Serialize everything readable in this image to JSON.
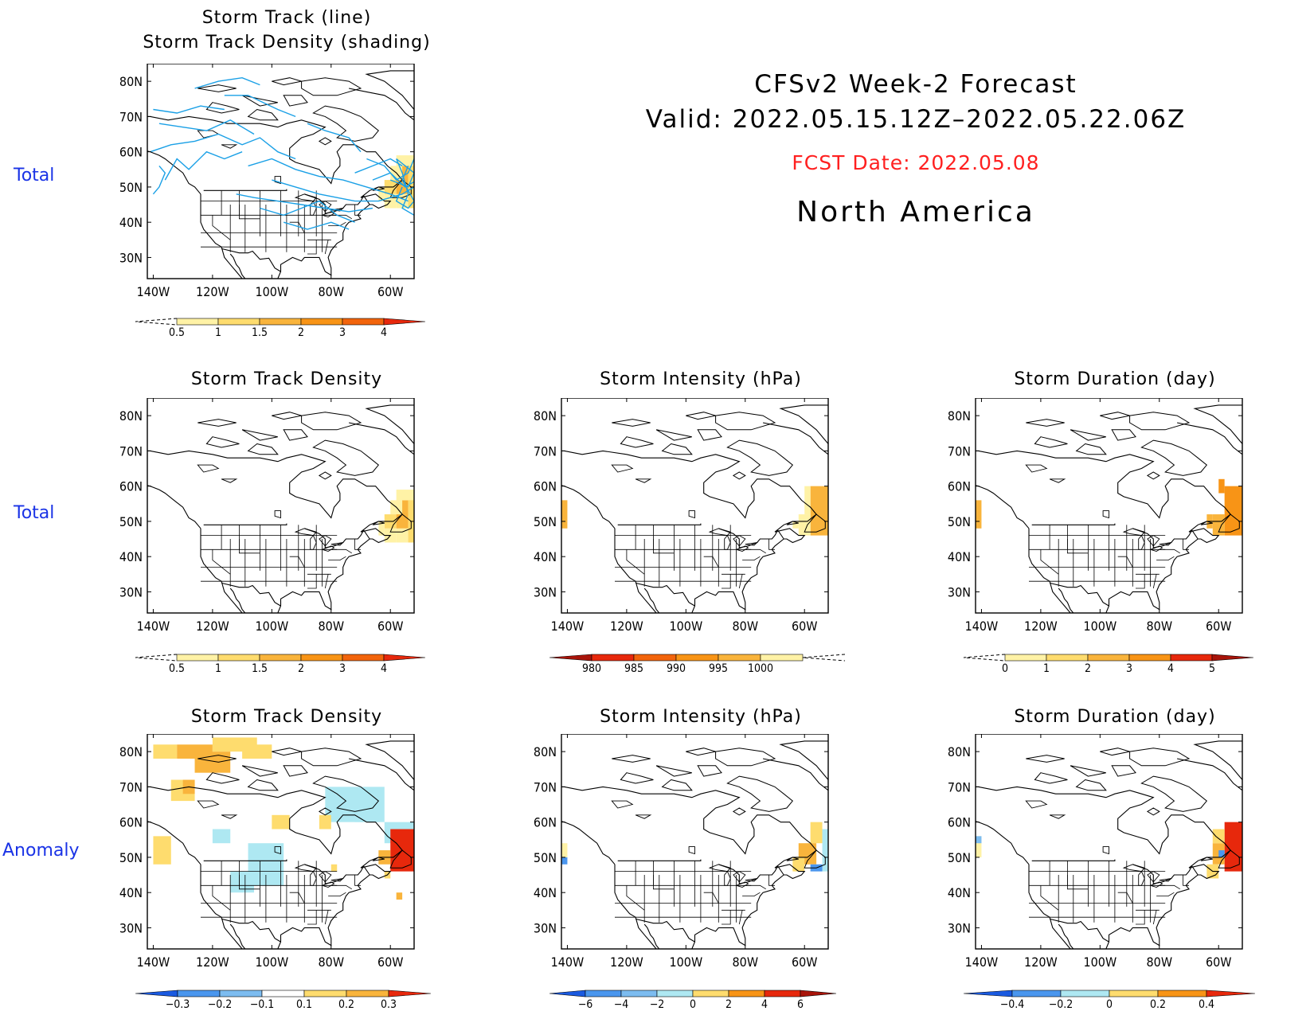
{
  "header": {
    "line1": "CFSv2  Week-2  Forecast",
    "line2": "Valid:  2022.05.15.12Z–2022.05.22.06Z",
    "fcst": "FCST Date: 2022.05.08",
    "region": "North  America"
  },
  "rows": {
    "row1": "Total",
    "row2": "Total",
    "row3": "Anomaly"
  },
  "axes": {
    "lat": [
      "80N",
      "70N",
      "60N",
      "50N",
      "40N",
      "30N"
    ],
    "lon": [
      "140W",
      "120W",
      "100W",
      "80W",
      "60W"
    ]
  },
  "colors": {
    "track_line": "#1aa0e6",
    "pale_yellow": "#fff2a6",
    "yellow": "#fedc6e",
    "light_orange": "#f9b43c",
    "orange": "#f89416",
    "dark_orange": "#f2640c",
    "red": "#e7280c",
    "dark_red": "#a8140a",
    "pale_blue": "#aee8f2",
    "light_blue": "#7cbcf0",
    "mid_blue": "#4a96ee",
    "blue": "#1a5ae0"
  },
  "panels": [
    {
      "id": "p1",
      "title1": "Storm  Track  (line)",
      "title2": "Storm  Track  Density  (shading)",
      "colorbar": {
        "labels": [
          "0.5",
          "1",
          "1.5",
          "2",
          "3",
          "4"
        ]
      }
    },
    {
      "id": "p2",
      "title1": "Storm  Track  Density",
      "colorbar": {
        "labels": [
          "0.5",
          "1",
          "1.5",
          "2",
          "3",
          "4"
        ]
      }
    },
    {
      "id": "p3",
      "title1": "Storm  Intensity  (hPa)",
      "colorbar": {
        "labels": [
          "980",
          "985",
          "990",
          "995",
          "1000"
        ]
      }
    },
    {
      "id": "p4",
      "title1": "Storm  Duration  (day)",
      "colorbar": {
        "labels": [
          "0",
          "1",
          "2",
          "3",
          "4",
          "5"
        ]
      }
    },
    {
      "id": "p5",
      "title1": "Storm  Track  Density",
      "colorbar": {
        "labels": [
          "−0.3",
          "−0.2",
          "−0.1",
          "0.1",
          "0.2",
          "0.3"
        ]
      }
    },
    {
      "id": "p6",
      "title1": "Storm  Intensity  (hPa)",
      "colorbar": {
        "labels": [
          "−6",
          "−4",
          "−2",
          "0",
          "2",
          "4",
          "6"
        ]
      }
    },
    {
      "id": "p7",
      "title1": "Storm  Duration  (day)",
      "colorbar": {
        "labels": [
          "−0.4",
          "−0.2",
          "0",
          "0.2",
          "0.4"
        ]
      }
    }
  ]
}
